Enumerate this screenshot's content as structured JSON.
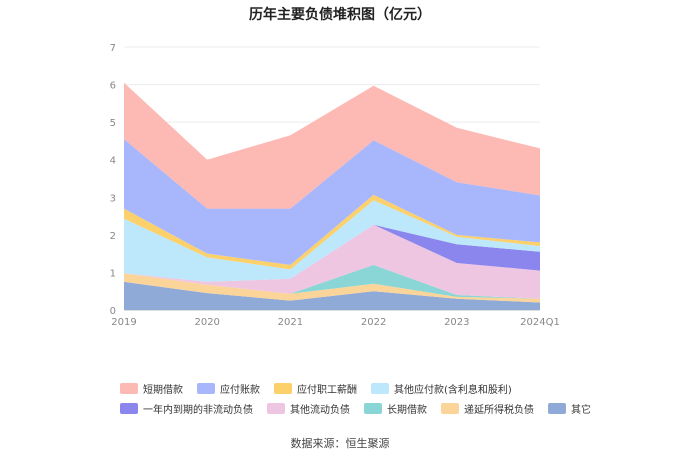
{
  "title": "历年主要负债堆积图（亿元）",
  "source": "数据来源：恒生聚源",
  "chart_data": {
    "type": "area",
    "stacked": true,
    "categories": [
      "2019",
      "2020",
      "2021",
      "2022",
      "2023",
      "2024Q1"
    ],
    "ylim": [
      0,
      7
    ],
    "yticks": [
      0,
      1,
      2,
      3,
      4,
      5,
      6,
      7
    ],
    "grid": true,
    "legend_position": "bottom",
    "series": [
      {
        "name": "其它",
        "color": "#8faad6",
        "values": [
          0.75,
          0.45,
          0.25,
          0.5,
          0.3,
          0.2
        ]
      },
      {
        "name": "递延所得税负债",
        "color": "#fbd49a",
        "values": [
          0.23,
          0.22,
          0.18,
          0.2,
          0.05,
          0.1
        ]
      },
      {
        "name": "长期借款",
        "color": "#8ad6d6",
        "values": [
          0.0,
          0.0,
          0.0,
          0.5,
          0.05,
          0.0
        ]
      },
      {
        "name": "其他流动负债",
        "color": "#eec6e2",
        "values": [
          0.0,
          0.08,
          0.4,
          1.07,
          0.85,
          0.75
        ]
      },
      {
        "name": "一年内到期的非流动负债",
        "color": "#8b86ee",
        "values": [
          0.0,
          0.0,
          0.0,
          0.0,
          0.5,
          0.5
        ]
      },
      {
        "name": "其他应付款(含利息和股利)",
        "color": "#bde7fb",
        "values": [
          1.45,
          0.65,
          0.25,
          0.65,
          0.2,
          0.15
        ]
      },
      {
        "name": "应付职工薪酬",
        "color": "#fcd06b",
        "values": [
          0.27,
          0.1,
          0.12,
          0.15,
          0.05,
          0.1
        ]
      },
      {
        "name": "应付账款",
        "color": "#a8b7fb",
        "values": [
          1.85,
          1.2,
          1.5,
          1.45,
          1.4,
          1.25
        ]
      },
      {
        "name": "短期借款",
        "color": "#fdb9b3",
        "values": [
          1.5,
          1.3,
          1.95,
          1.45,
          1.45,
          1.25
        ]
      }
    ]
  },
  "legend_rows": [
    [
      "短期借款",
      "应付账款",
      "应付职工薪酬",
      "其他应付款(含利息和股利)"
    ],
    [
      "一年内到期的非流动负债",
      "其他流动负债",
      "长期借款",
      "递延所得税负债",
      "其它"
    ]
  ]
}
